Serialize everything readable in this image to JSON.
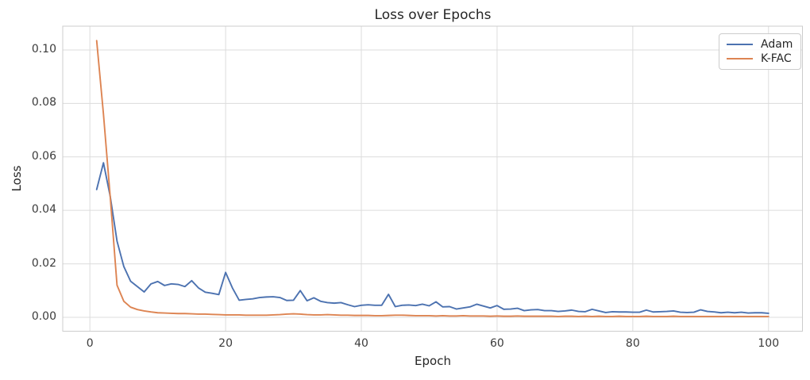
{
  "figure": {
    "title": "Loss over Epochs",
    "xlabel": "Epoch",
    "ylabel": "Loss"
  },
  "legend": {
    "position": "upper right",
    "entries": [
      {
        "label": "Adam",
        "color": "#4C72B0"
      },
      {
        "label": "K-FAC",
        "color": "#DD8452"
      }
    ]
  },
  "colors": {
    "background": "#FFFFFF",
    "grid": "#DCDCDC",
    "frame": "#CCCCCC",
    "title_text": "#262626",
    "tick_text": "#3B3B3B",
    "adam_line": "#4C72B0",
    "kfac_line": "#DD8452"
  },
  "chart_data": {
    "type": "line",
    "title": "Loss over Epochs",
    "xlabel": "Epoch",
    "ylabel": "Loss",
    "grid": true,
    "legend_position": "upper right",
    "xlim": [
      -4,
      105
    ],
    "ylim": [
      -0.0052,
      0.1089
    ],
    "xticks": [
      0,
      20,
      40,
      60,
      80,
      100
    ],
    "xtick_labels": [
      "0",
      "20",
      "40",
      "60",
      "80",
      "100"
    ],
    "yticks": [
      0.0,
      0.02,
      0.04,
      0.06,
      0.08,
      0.1
    ],
    "ytick_labels": [
      "0.00",
      "0.02",
      "0.04",
      "0.06",
      "0.08",
      "0.10"
    ],
    "x_start": 1,
    "x_step": 1,
    "series": [
      {
        "name": "Adam",
        "color": "#4C72B0",
        "values": [
          0.0478,
          0.0578,
          0.0452,
          0.0285,
          0.019,
          0.0135,
          0.0115,
          0.0095,
          0.0125,
          0.0134,
          0.0119,
          0.0125,
          0.0123,
          0.0115,
          0.0137,
          0.011,
          0.0094,
          0.009,
          0.0085,
          0.0168,
          0.011,
          0.0064,
          0.0067,
          0.0069,
          0.0074,
          0.0076,
          0.0077,
          0.0074,
          0.0063,
          0.0064,
          0.01,
          0.0062,
          0.0073,
          0.006,
          0.0055,
          0.0053,
          0.0055,
          0.0047,
          0.004,
          0.0045,
          0.0047,
          0.0045,
          0.0045,
          0.0086,
          0.004,
          0.0045,
          0.0046,
          0.0044,
          0.0049,
          0.0043,
          0.0058,
          0.0039,
          0.004,
          0.0031,
          0.0035,
          0.0039,
          0.0049,
          0.0042,
          0.0035,
          0.0044,
          0.003,
          0.0031,
          0.0034,
          0.0025,
          0.0028,
          0.0029,
          0.0025,
          0.0025,
          0.0022,
          0.0024,
          0.0027,
          0.0022,
          0.0021,
          0.003,
          0.0024,
          0.0018,
          0.0021,
          0.002,
          0.002,
          0.0019,
          0.0019,
          0.0027,
          0.002,
          0.0021,
          0.0022,
          0.0024,
          0.0019,
          0.0018,
          0.0019,
          0.0028,
          0.0022,
          0.002,
          0.0017,
          0.0019,
          0.0017,
          0.0019,
          0.0016,
          0.0017,
          0.0017,
          0.0015
        ]
      },
      {
        "name": "K-FAC",
        "color": "#DD8452",
        "values": [
          0.1035,
          0.076,
          0.045,
          0.012,
          0.006,
          0.0038,
          0.0029,
          0.0024,
          0.002,
          0.0017,
          0.0016,
          0.0015,
          0.0014,
          0.0014,
          0.0013,
          0.0012,
          0.0012,
          0.0011,
          0.001,
          0.0009,
          0.0009,
          0.0009,
          0.0008,
          0.0008,
          0.0008,
          0.0008,
          0.0009,
          0.001,
          0.0012,
          0.0013,
          0.0012,
          0.001,
          0.0009,
          0.0009,
          0.001,
          0.0009,
          0.0008,
          0.0008,
          0.0007,
          0.0007,
          0.0007,
          0.0006,
          0.0006,
          0.0007,
          0.0008,
          0.0008,
          0.0007,
          0.0006,
          0.0006,
          0.0006,
          0.0005,
          0.0006,
          0.0005,
          0.0005,
          0.0006,
          0.0005,
          0.0005,
          0.0005,
          0.0004,
          0.0005,
          0.0004,
          0.0004,
          0.0005,
          0.0004,
          0.0004,
          0.0004,
          0.0004,
          0.0004,
          0.0003,
          0.0004,
          0.0004,
          0.0003,
          0.0004,
          0.0003,
          0.0004,
          0.0003,
          0.0003,
          0.0004,
          0.0003,
          0.0003,
          0.0003,
          0.0004,
          0.0003,
          0.0003,
          0.0003,
          0.0004,
          0.0003,
          0.0003,
          0.0003,
          0.0003,
          0.0003,
          0.0003,
          0.0003,
          0.0003,
          0.0003,
          0.0003,
          0.0003,
          0.0003,
          0.0003,
          0.0003
        ]
      }
    ]
  }
}
